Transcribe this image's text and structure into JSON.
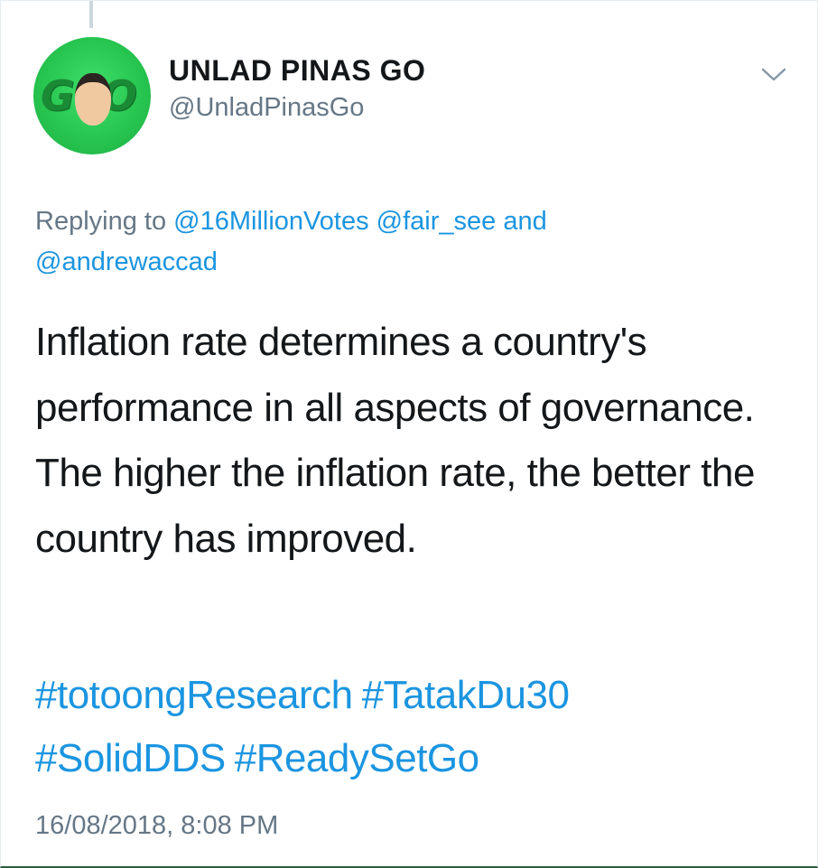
{
  "tweet": {
    "display_name": "UNLAD PINAS GO",
    "handle": "@UnladPinasGo",
    "avatar": {
      "logo_text": "GO!",
      "bg_color": "#27c650"
    },
    "reply": {
      "prefix": "Replying to",
      "mentions": [
        "@16MillionVotes",
        "@fair_see"
      ],
      "conjunction": "and",
      "last_mention": "@andrewaccad"
    },
    "text": "Inflation rate determines a country's performance in all aspects of governance. The higher the inflation rate, the better the country has improved.",
    "hashtags": [
      "#totoongResearch",
      "#TatakDu30",
      "#SolidDDS",
      "#ReadySetGo"
    ],
    "timestamp": "16/08/2018, 8:08 PM",
    "menu_icon": "chevron-down-icon"
  },
  "colors": {
    "link": "#1b95e0",
    "secondary_text": "#657786",
    "primary_text": "#14171a"
  }
}
